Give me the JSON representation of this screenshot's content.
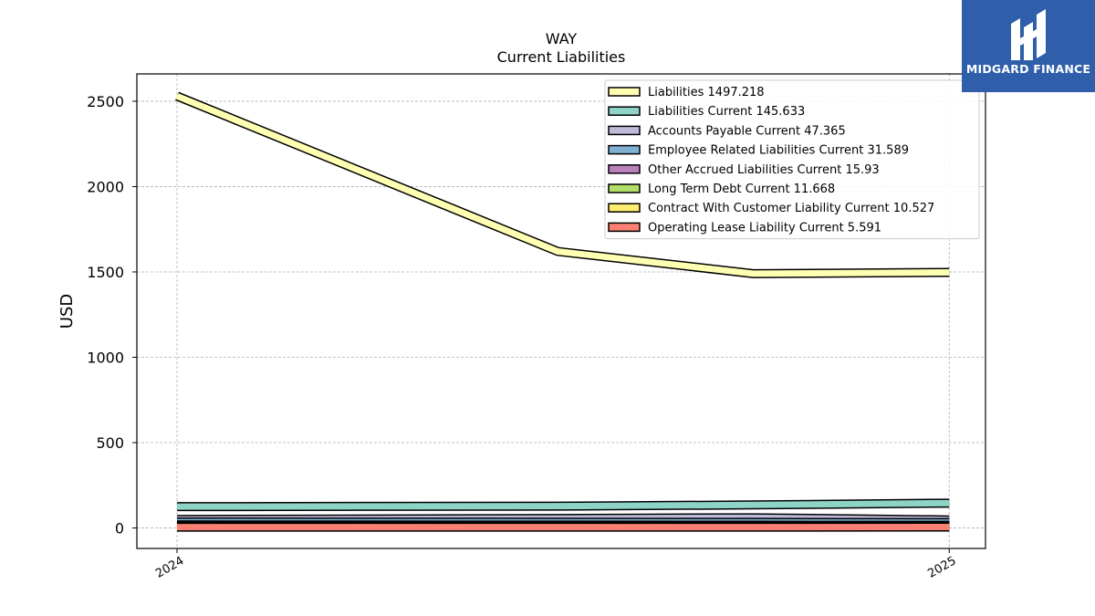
{
  "chart_data": {
    "type": "area",
    "title": "WAY",
    "subtitle": "Current  Liabilities",
    "ylabel": "USD",
    "xlabel": "",
    "x_ticks": [
      "2024",
      "2025"
    ],
    "y_ticks": [
      0,
      500,
      1000,
      1500,
      2000,
      2500
    ],
    "ylim": [
      -120,
      2660
    ],
    "x_domain": [
      -0.052,
      1.047
    ],
    "grid": true,
    "legend_position": "top-right",
    "series": [
      {
        "name": "Liabilities",
        "label": "Liabilities  1497.218",
        "color": "#ffffb3",
        "x": [
          0,
          0.493,
          0.746,
          1
        ],
        "y": [
          2530,
          1620,
          1490,
          1497.218
        ]
      },
      {
        "name": "Liabilities Current",
        "label": "Liabilities Current  145.633",
        "color": "#8dd3c7",
        "x": [
          0,
          0.493,
          0.746,
          1
        ],
        "y": [
          125,
          128,
          135,
          145.633
        ]
      },
      {
        "name": "Accounts Payable Current",
        "label": "Accounts Payable Current  47.365",
        "color": "#bebada",
        "x": [
          0,
          0.493,
          0.746,
          1
        ],
        "y": [
          50,
          56,
          60,
          47.365
        ]
      },
      {
        "name": "Employee Related Liabilities Current",
        "label": "Employee Related Liabilities Current  31.589",
        "color": "#80b1d3",
        "x": [
          0,
          0.493,
          0.746,
          1
        ],
        "y": [
          35,
          34,
          33,
          31.589
        ]
      },
      {
        "name": "Other Accrued Liabilities Current",
        "label": "Other Accrued Liabilities Current  15.93",
        "color": "#bc80bd",
        "x": [
          0,
          0.493,
          0.746,
          1
        ],
        "y": [
          18,
          17,
          16,
          15.93
        ]
      },
      {
        "name": "Long Term Debt Current",
        "label": "Long Term Debt Current  11.668",
        "color": "#b3de69",
        "x": [
          0,
          0.493,
          0.746,
          1
        ],
        "y": [
          12,
          12,
          12,
          11.668
        ]
      },
      {
        "name": "Contract With Customer Liability Current",
        "label": "Contract With Customer Liability Current  10.527",
        "color": "#ffed6f",
        "x": [
          0,
          0.493,
          0.746,
          1
        ],
        "y": [
          10,
          10,
          10,
          10.527
        ]
      },
      {
        "name": "Operating Lease Liability Current",
        "label": "Operating Lease Liability Current  5.591",
        "color": "#fb8072",
        "x": [
          0,
          0.493,
          0.746,
          1
        ],
        "y": [
          5,
          5,
          5,
          5.591
        ]
      }
    ]
  },
  "logo": {
    "text": "MIDGARD FINANCE",
    "color": "#2f5eab"
  }
}
